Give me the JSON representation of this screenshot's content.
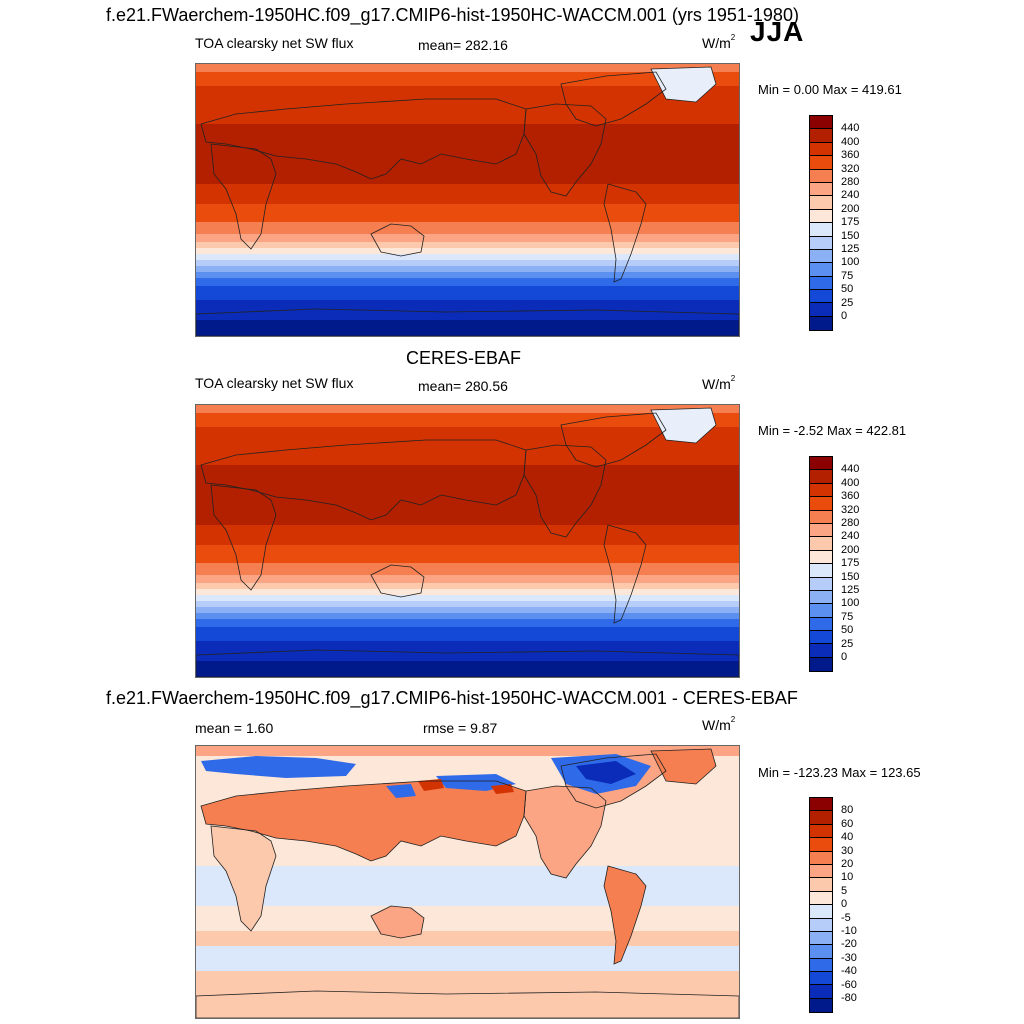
{
  "panels": [
    {
      "title": "f.e21.FWaerchem-1950HC.f09_g17.CMIP6-hist-1950HC-WACCM.001 (yrs 1951-1980)",
      "season": "JJA",
      "left_label": "TOA clearsky net SW flux",
      "mid_label": "mean= 282.16",
      "unit": "W/m",
      "unit_sup": "2",
      "minmax": "Min =   0.00 Max = 419.61",
      "colorbar": {
        "labels": [
          "440",
          "400",
          "360",
          "320",
          "280",
          "240",
          "200",
          "175",
          "150",
          "125",
          "100",
          "75",
          "50",
          "25",
          "0"
        ],
        "colors": [
          "#8b0000",
          "#b22000",
          "#d33300",
          "#ea4c0e",
          "#f57f50",
          "#fba584",
          "#fcc9ad",
          "#fde7d8",
          "#dbe8fb",
          "#b5cdf8",
          "#8bb0f4",
          "#5b8ff0",
          "#2f6ae8",
          "#1448d6",
          "#0a2cb8",
          "#001a8c"
        ]
      }
    },
    {
      "title": "CERES-EBAF",
      "left_label": "TOA clearsky net SW flux",
      "mid_label": "mean= 280.56",
      "unit": "W/m",
      "unit_sup": "2",
      "minmax": "Min =  -2.52 Max = 422.81",
      "colorbar": {
        "labels": [
          "440",
          "400",
          "360",
          "320",
          "280",
          "240",
          "200",
          "175",
          "150",
          "125",
          "100",
          "75",
          "50",
          "25",
          "0"
        ],
        "colors": [
          "#8b0000",
          "#b22000",
          "#d33300",
          "#ea4c0e",
          "#f57f50",
          "#fba584",
          "#fcc9ad",
          "#fde7d8",
          "#dbe8fb",
          "#b5cdf8",
          "#8bb0f4",
          "#5b8ff0",
          "#2f6ae8",
          "#1448d6",
          "#0a2cb8",
          "#001a8c"
        ]
      }
    },
    {
      "title": "f.e21.FWaerchem-1950HC.f09_g17.CMIP6-hist-1950HC-WACCM.001 - CERES-EBAF",
      "left_label": "mean =   1.60",
      "mid_label": "rmse =   9.87",
      "unit": "W/m",
      "unit_sup": "2",
      "minmax": "Min = -123.23 Max = 123.65",
      "colorbar": {
        "labels": [
          "80",
          "60",
          "40",
          "30",
          "20",
          "10",
          "5",
          "0",
          "-5",
          "-10",
          "-20",
          "-30",
          "-40",
          "-60",
          "-80"
        ],
        "colors": [
          "#8b0000",
          "#b22000",
          "#d33300",
          "#ea4c0e",
          "#f57f50",
          "#fba584",
          "#fcc9ad",
          "#fde7d8",
          "#dbe8fb",
          "#b5cdf8",
          "#8bb0f4",
          "#5b8ff0",
          "#2f6ae8",
          "#1448d6",
          "#0a2cb8",
          "#001a8c"
        ]
      }
    }
  ]
}
